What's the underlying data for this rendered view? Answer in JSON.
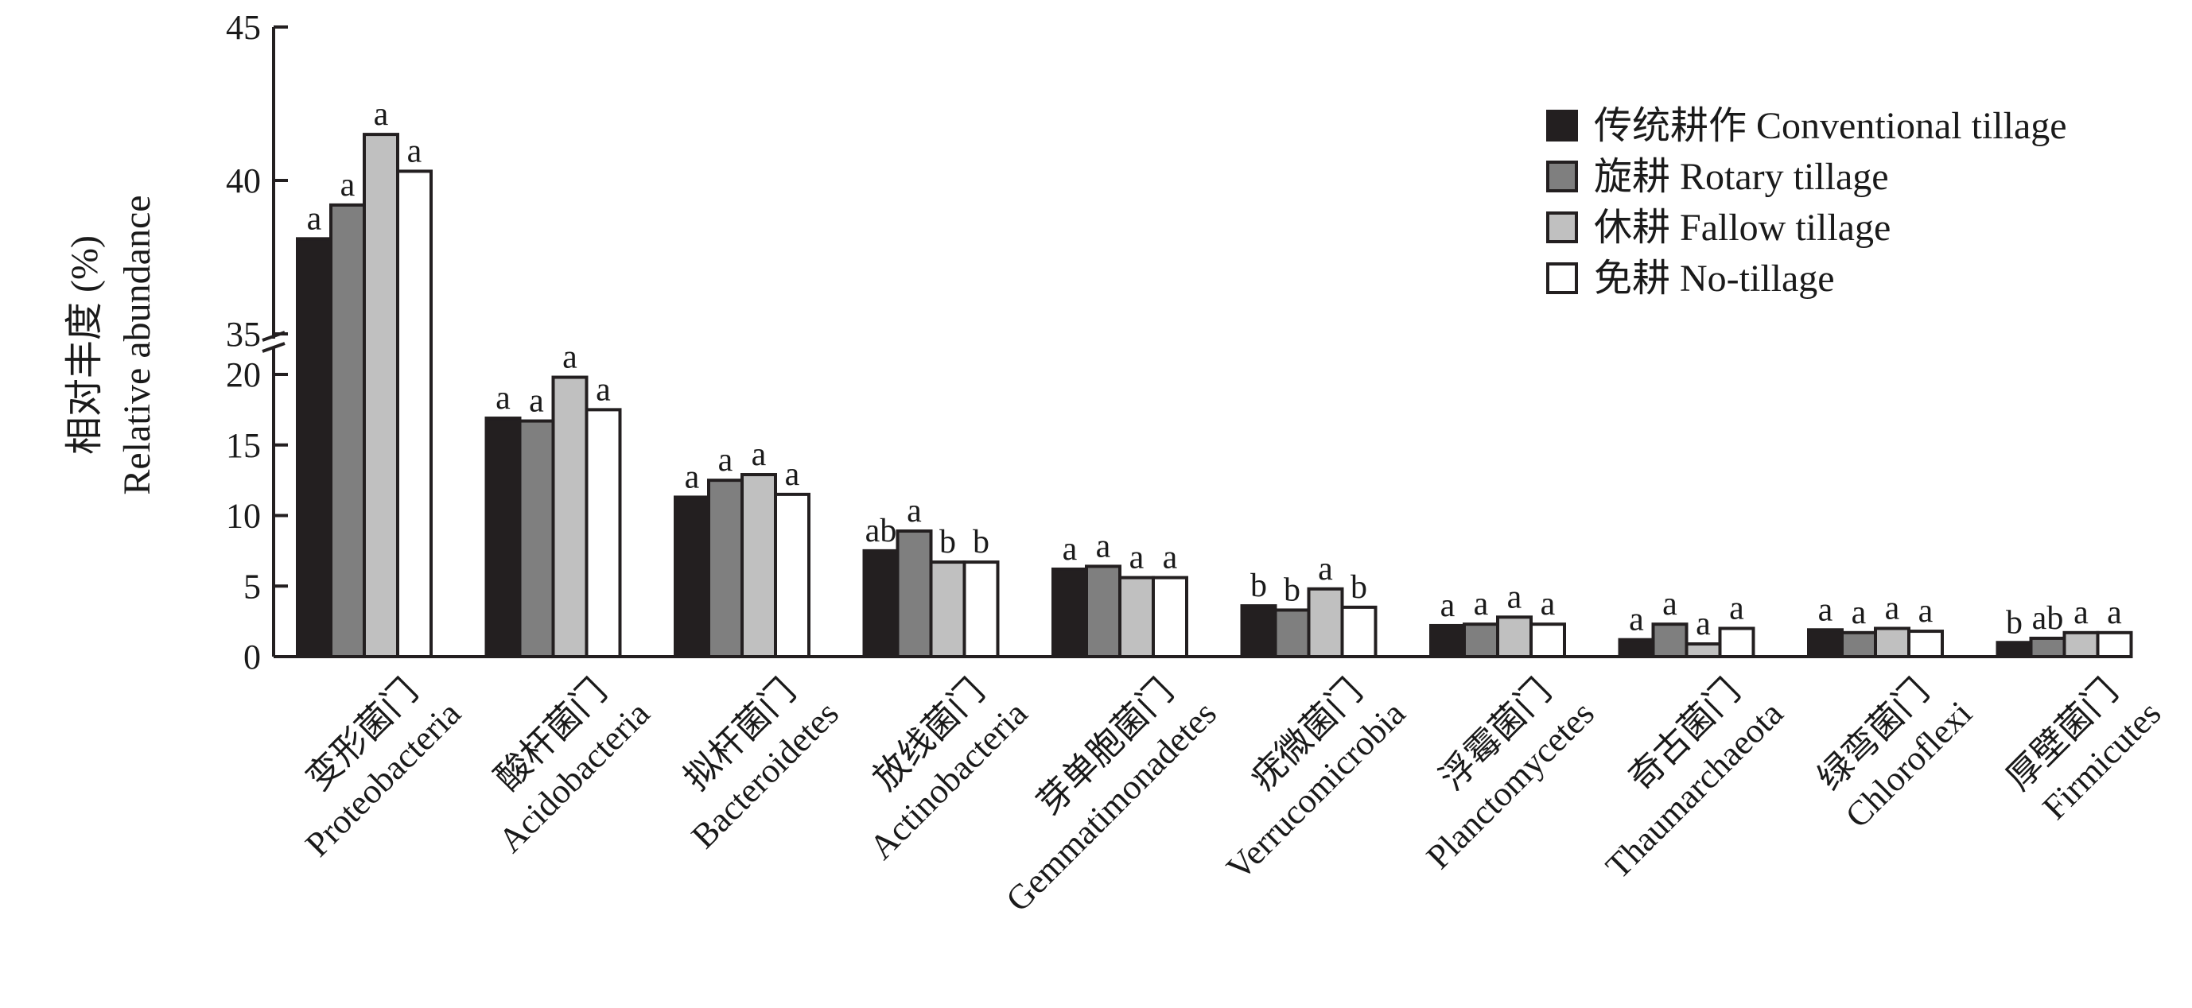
{
  "chart_data": {
    "type": "bar",
    "title": "",
    "subtitle": "",
    "ylabel_lines": [
      "相对丰度 (%)",
      "Relative abundance"
    ],
    "axis_break": {
      "lower_range": [
        0,
        20
      ],
      "upper_range": [
        35,
        45
      ]
    },
    "yticks_lower": [
      0,
      5,
      10,
      15,
      20
    ],
    "yticks_upper": [
      35,
      40,
      45
    ],
    "categories": [
      {
        "cn": "变形菌门",
        "en": "Proteobacteria"
      },
      {
        "cn": "酸杆菌门",
        "en": "Acidobacteria"
      },
      {
        "cn": "拟杆菌门",
        "en": "Bacteroidetes"
      },
      {
        "cn": "放线菌门",
        "en": "Actinobacteria"
      },
      {
        "cn": "芽单胞菌门",
        "en": "Gemmatimonadetes"
      },
      {
        "cn": "疣微菌门",
        "en": "Verrucomicrobia"
      },
      {
        "cn": "浮霉菌门",
        "en": "Planctomycetes"
      },
      {
        "cn": "奇古菌门",
        "en": "Thaumarchaeota"
      },
      {
        "cn": "绿弯菌门",
        "en": "Chloroflexi"
      },
      {
        "cn": "厚壁菌门",
        "en": "Firmicutes"
      }
    ],
    "series": [
      {
        "name": "传统耕作 Conventional tillage",
        "color": "#231f20",
        "values": [
          38.1,
          16.9,
          11.3,
          7.5,
          6.2,
          3.6,
          2.2,
          1.2,
          1.9,
          1.0
        ],
        "labels": [
          "a",
          "a",
          "a",
          "ab",
          "a",
          "b",
          "a",
          "a",
          "a",
          "b"
        ]
      },
      {
        "name": "旋耕 Rotary tillage",
        "color": "#7f7f7f",
        "values": [
          39.2,
          16.7,
          12.5,
          8.9,
          6.4,
          3.3,
          2.3,
          2.3,
          1.7,
          1.3
        ],
        "labels": [
          "a",
          "a",
          "a",
          "a",
          "a",
          "b",
          "a",
          "a",
          "a",
          "ab"
        ]
      },
      {
        "name": "休耕 Fallow tillage",
        "color": "#c0c0c0",
        "values": [
          41.5,
          19.8,
          12.9,
          6.7,
          5.6,
          4.8,
          2.8,
          0.9,
          2.0,
          1.7
        ],
        "labels": [
          "a",
          "a",
          "a",
          "b",
          "a",
          "a",
          "a",
          "a",
          "a",
          "a"
        ]
      },
      {
        "name": "免耕 No-tillage",
        "color": "#ffffff",
        "values": [
          40.3,
          17.5,
          11.5,
          6.7,
          5.6,
          3.5,
          2.3,
          2.0,
          1.8,
          1.7
        ],
        "labels": [
          "a",
          "a",
          "a",
          "b",
          "a",
          "b",
          "a",
          "a",
          "a",
          "a"
        ]
      }
    ],
    "legend_position": "top-right",
    "grid": false
  }
}
